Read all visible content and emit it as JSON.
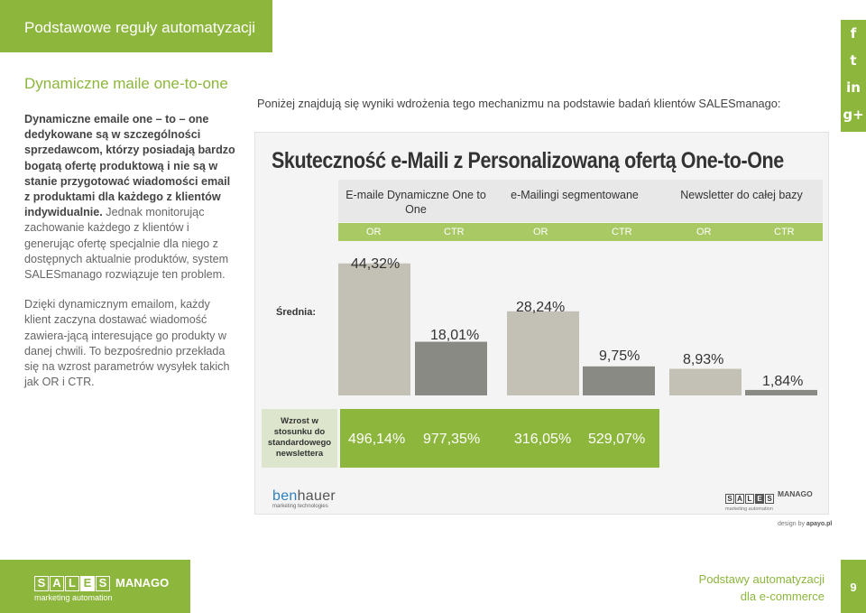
{
  "header": {
    "title": "Podstawowe reguły automatyzacji"
  },
  "social": {
    "items": [
      "f",
      "t",
      "in",
      "g+"
    ]
  },
  "left_column": {
    "title": "Dynamiczne maile one-to-one",
    "p1_bold": "Dynamiczne emaile one – to – one dedykowane są w szczególności sprzedawcom, którzy posiadają bardzo bogatą ofertę produktową i nie są w stanie przygotować wiadomości email z produktami dla każdego z klientów indywidualnie.",
    "p1_rest": " Jednak monitorując zachowanie każdego z klientów i generując ofertę specjalnie dla niego z dostępnych aktualnie produktów, system SALESmanago rozwiązuje ten problem.",
    "p2": "Dzięki dynamicznym emailom, każdy klient zaczyna dostawać wiadomość zawiera-jącą interesujące go produkty w danej chwili. To bezpośrednio przekłada się na wzrost parametrów wysyłek takich jak OR i CTR."
  },
  "intro": "Poniżej znajdują się wyniki wdrożenia tego mechanizmu na podstawie badań klientów SALESmanago:",
  "infographic": {
    "title": "Skuteczność e-Maili z Personalizowaną ofertą One-to-One",
    "average_label": "Średnia:",
    "growth_label": "Wzrost w stosunku do standardowego newslettera",
    "growth_values": [
      "496,14%",
      "977,35%",
      "316,05%",
      "529,07%"
    ],
    "brand_left": {
      "first": "ben",
      "second": "hauer",
      "sub": "marketing technologies"
    },
    "brand_right": {
      "letters": [
        "S",
        "A",
        "L",
        "E",
        "S"
      ],
      "name": "MANAGO",
      "sub": "marketing automation"
    }
  },
  "chart_data": {
    "type": "bar",
    "title": "Skuteczność e-Maili z Personalizowaną ofertą One-to-One",
    "ylabel": "Średnia:",
    "ylim": [
      0,
      50
    ],
    "groups": [
      {
        "label": "E-maile Dynamiczne One to One"
      },
      {
        "label": "e-Mailingi segmentowane"
      },
      {
        "label": "Newsletter do całej bazy"
      }
    ],
    "series": [
      {
        "name": "OR",
        "color": "#c3c1b6"
      },
      {
        "name": "CTR",
        "color": "#8a8a85"
      }
    ],
    "values": [
      {
        "series": "OR",
        "value": 44.32,
        "label": "44,32%"
      },
      {
        "series": "CTR",
        "value": 18.01,
        "label": "18,01%"
      },
      {
        "series": "OR",
        "value": 28.24,
        "label": "28,24%"
      },
      {
        "series": "CTR",
        "value": 9.75,
        "label": "9,75%"
      },
      {
        "series": "OR",
        "value": 8.93,
        "label": "8,93%"
      },
      {
        "series": "CTR",
        "value": 1.84,
        "label": "1,84%"
      }
    ]
  },
  "credit": {
    "prefix": "design by ",
    "name": "apayo.pl"
  },
  "footer": {
    "brand_letters": [
      "S",
      "A",
      "L",
      "E",
      "S"
    ],
    "brand_name": "MANAGO",
    "brand_sub": "marketing automation",
    "title_line1": "Podstawy automatyzacji",
    "title_line2": "dla e-commerce",
    "page_number": "9"
  },
  "colors": {
    "accent": "#8db63c",
    "or_bar": "#c3c1b6",
    "ctr_bar": "#8a8a85"
  }
}
